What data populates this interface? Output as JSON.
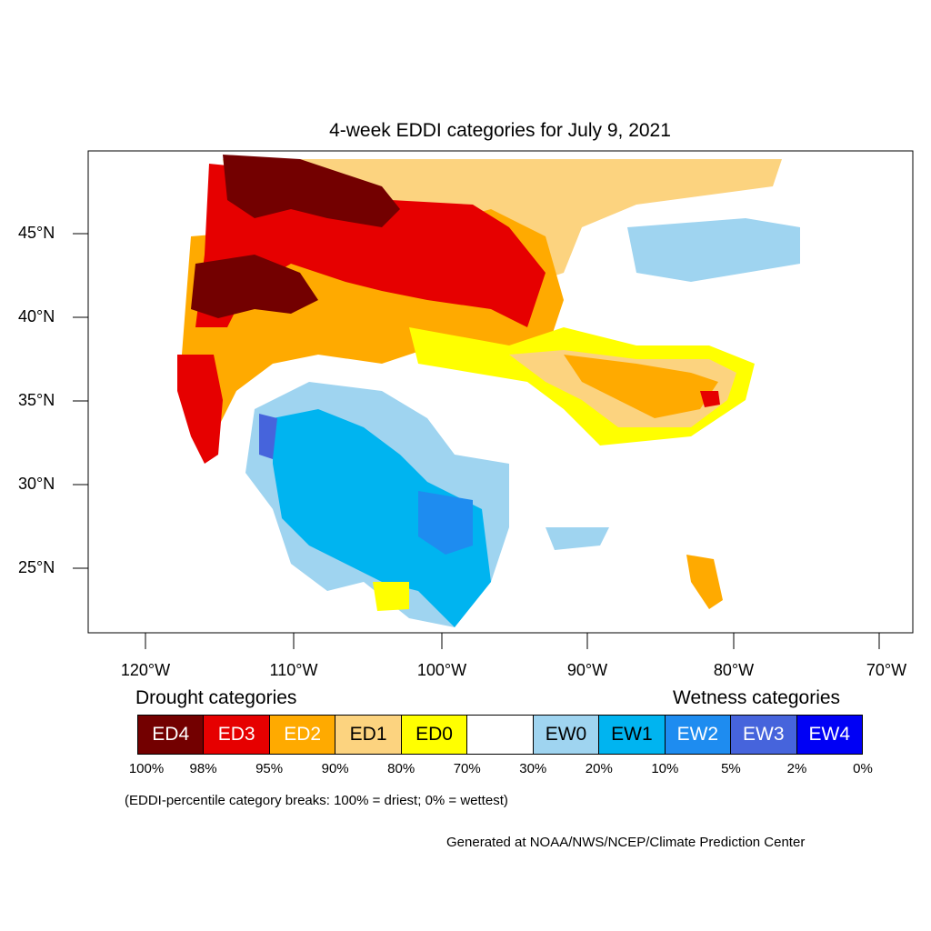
{
  "title": "4-week EDDI categories for July 9, 2021",
  "axes": {
    "lat_labels": [
      "45°N",
      "40°N",
      "35°N",
      "30°N",
      "25°N"
    ],
    "lon_labels": [
      "120°W",
      "110°W",
      "100°W",
      "90°W",
      "80°W",
      "70°W"
    ]
  },
  "legend": {
    "drought_heading": "Drought categories",
    "wetness_heading": "Wetness categories",
    "categories": [
      {
        "label": "ED4",
        "color": "#730000",
        "text_color": "#ffffff"
      },
      {
        "label": "ED3",
        "color": "#e60000",
        "text_color": "#ffffff"
      },
      {
        "label": "ED2",
        "color": "#ffaa00",
        "text_color": "#ffffff"
      },
      {
        "label": "ED1",
        "color": "#fcd37f",
        "text_color": "#000000"
      },
      {
        "label": "ED0",
        "color": "#ffff00",
        "text_color": "#000000"
      },
      {
        "label": "",
        "color": "#ffffff",
        "text_color": "#000000"
      },
      {
        "label": "EW0",
        "color": "#9fd4f0",
        "text_color": "#000000"
      },
      {
        "label": "EW1",
        "color": "#00b4f0",
        "text_color": "#000000"
      },
      {
        "label": "EW2",
        "color": "#1e8cf0",
        "text_color": "#ffffff"
      },
      {
        "label": "EW3",
        "color": "#4664dc",
        "text_color": "#ffffff"
      },
      {
        "label": "EW4",
        "color": "#0000f5",
        "text_color": "#ffffff"
      }
    ],
    "percentiles": [
      "100%",
      "98%",
      "95%",
      "90%",
      "80%",
      "70%",
      "30%",
      "20%",
      "10%",
      "5%",
      "2%",
      "0%"
    ]
  },
  "note": "(EDDI-percentile category breaks: 100% = driest; 0% = wettest)",
  "credit": "Generated at NOAA/NWS/NCEP/Climate Prediction Center"
}
